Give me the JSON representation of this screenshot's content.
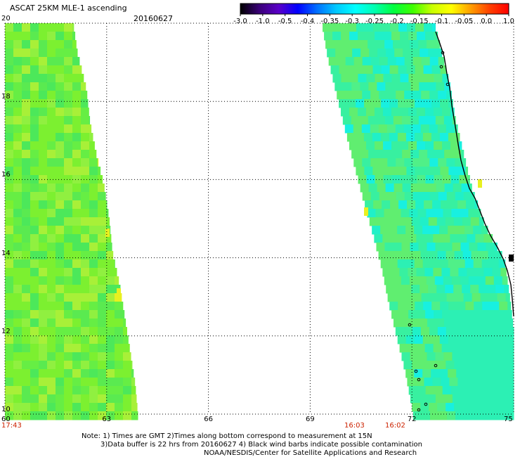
{
  "header": {
    "title": "ASCAT 25KM MLE-1 ascending",
    "date": "20160627"
  },
  "colorbar": {
    "tick_labels": [
      "-3.0",
      "-1.0",
      "-0.5",
      "-0.4",
      "-0.35",
      "-0.3",
      "-0.25",
      "-0.2",
      "-0.15",
      "-0.1",
      "-0.05",
      "0.0",
      "1.0"
    ],
    "colors": [
      "#000000",
      "#3a0078",
      "#5a00c8",
      "#0000ff",
      "#0070ff",
      "#00c8ff",
      "#00ffff",
      "#00ffb0",
      "#00ff40",
      "#40ff00",
      "#c8ff00",
      "#ffff00",
      "#ffa000",
      "#ff4000",
      "#ff0000"
    ]
  },
  "map": {
    "lat_labels": [
      "20",
      "18",
      "16",
      "14",
      "12",
      "10"
    ],
    "lon_labels": [
      "60",
      "63",
      "66",
      "69",
      "72",
      "75"
    ],
    "time_labels": [
      "17:43",
      "16:03",
      "16:02"
    ],
    "swath_colors": {
      "west_base": "#7cf030",
      "west_variants": [
        "#66ee44",
        "#90f040",
        "#5aea50",
        "#a8f038",
        "#4ce85a"
      ],
      "east_base": "#38f0a0",
      "east_variants": [
        "#20f0c8",
        "#50f088",
        "#18f0e0",
        "#60ee70",
        "#2cf0b4"
      ],
      "high_spots": "#e8f020",
      "coast": "#000000"
    }
  },
  "chart_data": {
    "type": "heatmap",
    "title": "ASCAT 25KM MLE-1 ascending",
    "subtitle": "20160627",
    "xlabel": "",
    "ylabel": "",
    "xlim": [
      60,
      75
    ],
    "ylim": [
      10,
      20
    ],
    "x_ticks": [
      60,
      63,
      66,
      69,
      72,
      75
    ],
    "y_ticks": [
      20,
      18,
      16,
      14,
      12,
      10
    ],
    "colorbar_ticks": [
      -3.0,
      -1.0,
      -0.5,
      -0.4,
      -0.35,
      -0.3,
      -0.25,
      -0.2,
      -0.15,
      -0.1,
      -0.05,
      0.0,
      1.0
    ],
    "grid": true,
    "series": [
      {
        "name": "17:43",
        "approx_value": -0.15
      },
      {
        "name": "16:03 / 16:02",
        "approx_value": -0.22
      }
    ]
  },
  "notes": {
    "line1": "Note: 1) Times are GMT 2)Times along bottom correspond to measurement at 15N",
    "line2": "3)Data buffer is 22 hrs from 20160627 4) Black wind barbs indicate possible contamination",
    "line3": "NOAA/NESDIS/Center for Satellite Applications and Research"
  }
}
